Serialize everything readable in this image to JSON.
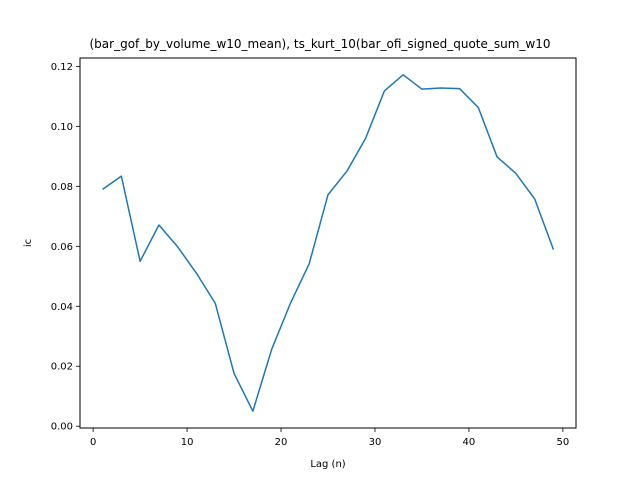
{
  "chart_data": {
    "type": "line",
    "title": "(bar_gof_by_volume_w10_mean), ts_kurt_10(bar_ofi_signed_quote_sum_w10",
    "xlabel": "Lag (n)",
    "ylabel": "ic",
    "xlim": [
      -1.4,
      51.4
    ],
    "ylim": [
      -0.0006,
      0.1228
    ],
    "xticks": [
      0,
      10,
      20,
      30,
      40,
      50
    ],
    "xtick_labels": [
      "0",
      "10",
      "20",
      "30",
      "40",
      "50"
    ],
    "yticks": [
      0.0,
      0.02,
      0.04,
      0.06,
      0.08,
      0.1,
      0.12
    ],
    "ytick_labels": [
      "0.00",
      "0.02",
      "0.04",
      "0.06",
      "0.08",
      "0.10",
      "0.12"
    ],
    "grid": false,
    "series": [
      {
        "color": "#1f77b4",
        "x": [
          1,
          3,
          5,
          7,
          9,
          11,
          13,
          15,
          17,
          19,
          21,
          23,
          25,
          27,
          29,
          31,
          33,
          35,
          37,
          39,
          41,
          43,
          45,
          47,
          49
        ],
        "y": [
          0.079,
          0.0834,
          0.055,
          0.0671,
          0.0598,
          0.051,
          0.041,
          0.0176,
          0.005,
          0.0256,
          0.041,
          0.0542,
          0.0772,
          0.085,
          0.096,
          0.1118,
          0.1172,
          0.1124,
          0.1128,
          0.1126,
          0.1063,
          0.0898,
          0.0843,
          0.0758,
          0.0589
        ]
      }
    ]
  }
}
